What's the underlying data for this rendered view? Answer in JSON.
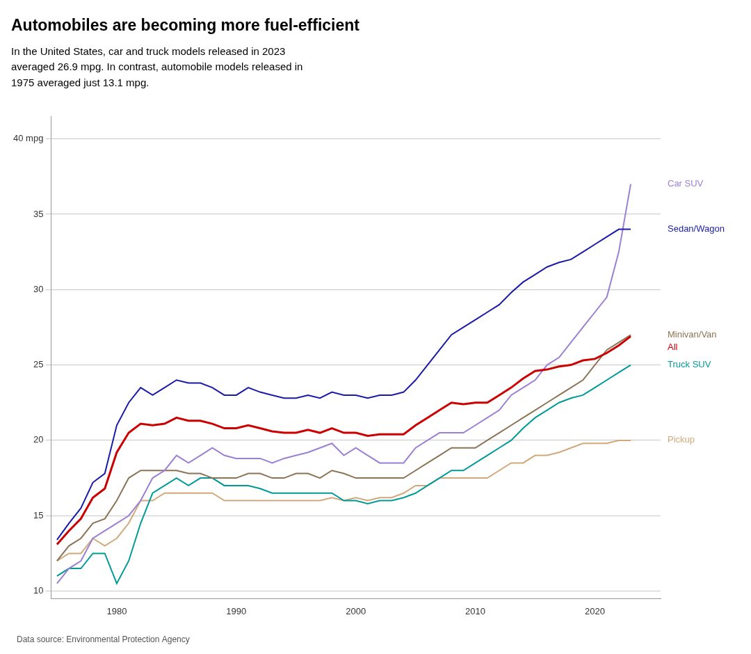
{
  "chart_data": {
    "type": "line",
    "title": "Automobiles are becoming more fuel-efficient",
    "subtitle": "In the United States, car and truck models released in 2023\naveraged 26.9 mpg. In contrast, automobile models released in\n1975 averaged just 13.1 mpg.",
    "source": "Data source: Environmental Protection Agency",
    "x": [
      1975,
      1976,
      1977,
      1978,
      1979,
      1980,
      1981,
      1982,
      1983,
      1984,
      1985,
      1986,
      1987,
      1988,
      1989,
      1990,
      1991,
      1992,
      1993,
      1994,
      1995,
      1996,
      1997,
      1998,
      1999,
      2000,
      2001,
      2002,
      2003,
      2004,
      2005,
      2006,
      2007,
      2008,
      2009,
      2010,
      2011,
      2012,
      2013,
      2014,
      2015,
      2016,
      2017,
      2018,
      2019,
      2020,
      2021,
      2022,
      2023
    ],
    "series": [
      {
        "name": "Pickup",
        "color": "#d2a87a",
        "values": [
          12.0,
          12.5,
          12.5,
          13.5,
          13.0,
          13.5,
          14.5,
          16.0,
          16.0,
          16.5,
          16.5,
          16.5,
          16.5,
          16.5,
          16.0,
          16.0,
          16.0,
          16.0,
          16.0,
          16.0,
          16.0,
          16.0,
          16.0,
          16.2,
          16.0,
          16.2,
          16.0,
          16.2,
          16.2,
          16.5,
          17.0,
          17.0,
          17.5,
          17.5,
          17.5,
          17.5,
          17.5,
          18.0,
          18.5,
          18.5,
          19.0,
          19.0,
          19.2,
          19.5,
          19.8,
          19.8,
          19.8,
          20.0,
          20.0
        ]
      },
      {
        "name": "Truck SUV",
        "color": "#009999",
        "values": [
          11.0,
          11.5,
          11.5,
          12.5,
          12.5,
          10.5,
          12.0,
          14.5,
          16.5,
          17.0,
          17.5,
          17.0,
          17.5,
          17.5,
          17.0,
          17.0,
          17.0,
          16.8,
          16.5,
          16.5,
          16.5,
          16.5,
          16.5,
          16.5,
          16.0,
          16.0,
          15.8,
          16.0,
          16.0,
          16.2,
          16.5,
          17.0,
          17.5,
          18.0,
          18.0,
          18.5,
          19.0,
          19.5,
          20.0,
          20.8,
          21.5,
          22.0,
          22.5,
          22.8,
          23.0,
          23.5,
          24.0,
          24.5,
          25.0
        ]
      },
      {
        "name": "Minivan/Van",
        "color": "#8b7355",
        "values": [
          12.0,
          13.0,
          13.5,
          14.5,
          14.8,
          16.0,
          17.5,
          18.0,
          18.0,
          18.0,
          18.0,
          17.8,
          17.8,
          17.5,
          17.5,
          17.5,
          17.8,
          17.8,
          17.5,
          17.5,
          17.8,
          17.8,
          17.5,
          18.0,
          17.8,
          17.5,
          17.5,
          17.5,
          17.5,
          17.5,
          18.0,
          18.5,
          19.0,
          19.5,
          19.5,
          19.5,
          20.0,
          20.5,
          21.0,
          21.5,
          22.0,
          22.5,
          23.0,
          23.5,
          24.0,
          25.0,
          26.0,
          26.5,
          27.0
        ]
      },
      {
        "name": "Car SUV",
        "color": "#9b7fd4",
        "values": [
          10.5,
          11.5,
          12.0,
          13.5,
          14.0,
          14.5,
          15.0,
          16.0,
          17.5,
          18.0,
          19.0,
          18.5,
          19.0,
          19.5,
          19.0,
          18.8,
          18.8,
          18.8,
          18.5,
          18.8,
          19.0,
          19.2,
          19.5,
          19.8,
          19.0,
          19.5,
          19.0,
          18.5,
          18.5,
          18.5,
          19.5,
          20.0,
          20.5,
          20.5,
          20.5,
          21.0,
          21.5,
          22.0,
          23.0,
          23.5,
          24.0,
          25.0,
          25.5,
          26.5,
          27.5,
          28.5,
          29.5,
          32.5,
          37.0
        ]
      },
      {
        "name": "Sedan/Wagon",
        "color": "#1a1aaa",
        "values": [
          13.4,
          14.5,
          15.5,
          17.2,
          17.8,
          21.0,
          22.5,
          23.5,
          23.0,
          23.5,
          24.0,
          23.8,
          23.8,
          23.5,
          23.0,
          23.0,
          23.5,
          23.2,
          23.0,
          22.8,
          22.8,
          23.0,
          22.8,
          23.2,
          23.0,
          23.0,
          22.8,
          23.0,
          23.0,
          23.2,
          24.0,
          25.0,
          26.0,
          27.0,
          27.5,
          28.0,
          28.5,
          29.0,
          29.8,
          30.5,
          31.0,
          31.5,
          31.8,
          32.0,
          32.5,
          33.0,
          33.5,
          34.0,
          34.0
        ]
      },
      {
        "name": "All",
        "color": "#cc0000",
        "values": [
          13.1,
          14.0,
          14.8,
          16.2,
          16.8,
          19.2,
          20.5,
          21.1,
          21.0,
          21.1,
          21.5,
          21.3,
          21.3,
          21.1,
          20.8,
          20.8,
          21.0,
          20.8,
          20.6,
          20.5,
          20.5,
          20.7,
          20.5,
          20.8,
          20.5,
          20.5,
          20.3,
          20.4,
          20.4,
          20.4,
          21.0,
          21.5,
          22.0,
          22.5,
          22.4,
          22.5,
          22.5,
          23.0,
          23.5,
          24.1,
          24.6,
          24.7,
          24.9,
          25.0,
          25.3,
          25.4,
          25.8,
          26.3,
          26.9
        ]
      }
    ],
    "xlim": [
      1974.5,
      2025.5
    ],
    "xticks": [
      1980,
      1990,
      2000,
      2010,
      2020
    ],
    "ylim": [
      9.5,
      41.5
    ],
    "yticks": [
      10,
      15,
      20,
      25,
      30,
      35,
      {
        "value": 40,
        "label": "40 mpg"
      }
    ],
    "grid": true
  }
}
